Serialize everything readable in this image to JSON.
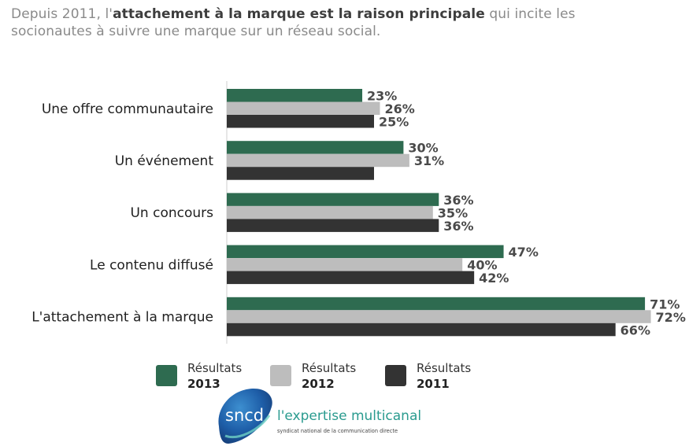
{
  "header": {
    "title_part1": "Depuis 2011, l'",
    "title_bold": "attachement à la marque est la raison principale",
    "title_part2": " qui incite les socionautes à suivre une marque sur un réseau social."
  },
  "colors": {
    "s2013": "#2e6b50",
    "s2012": "#bdbdbd",
    "s2011": "#333333",
    "value_text": "#4a4a4a"
  },
  "chart_data": {
    "type": "bar",
    "orientation": "horizontal",
    "categories": [
      "Une offre communautaire",
      "Un événement",
      "Un concours",
      "Le contenu diffusé",
      "L'attachement à la marque"
    ],
    "series": [
      {
        "name": "Résultats 2013",
        "values": [
          23,
          30,
          36,
          47,
          71
        ],
        "labels": [
          "23%",
          "30%",
          "36%",
          "47%",
          "71%"
        ],
        "color": "#2e6b50"
      },
      {
        "name": "Résultats 2012",
        "values": [
          26,
          31,
          35,
          40,
          72
        ],
        "labels": [
          "26%",
          "31%",
          "35%",
          "40%",
          "72%"
        ],
        "color": "#bdbdbd"
      },
      {
        "name": "Résultats 2011",
        "values": [
          25,
          25,
          36,
          42,
          66
        ],
        "labels": [
          "25%",
          "",
          "36%",
          "42%",
          "66%"
        ],
        "color": "#333333"
      }
    ],
    "xlim": [
      0,
      100
    ],
    "grid": false,
    "legend_position": "bottom"
  },
  "legend": [
    {
      "label": "Résultats",
      "year": "2013",
      "color": "#2e6b50"
    },
    {
      "label": "Résultats",
      "year": "2012",
      "color": "#bdbdbd"
    },
    {
      "label": "Résultats",
      "year": "2011",
      "color": "#333333"
    }
  ],
  "logo": {
    "mark_text": "sncd",
    "tagline": "l'expertise multicanal",
    "subtitle": "syndicat national de la communication directe"
  }
}
